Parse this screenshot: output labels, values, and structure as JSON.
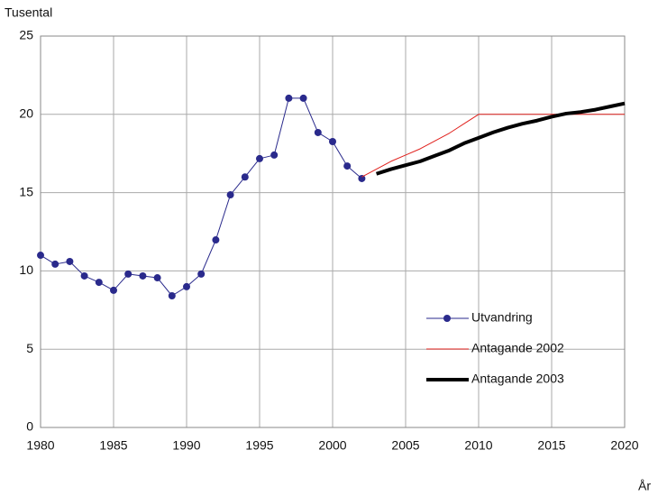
{
  "chart_data": {
    "type": "line",
    "y_label": "Tusental",
    "x_label": "År",
    "x": [
      1980,
      1981,
      1982,
      1983,
      1984,
      1985,
      1986,
      1987,
      1988,
      1989,
      1990,
      1991,
      1992,
      1993,
      1994,
      1995,
      1996,
      1997,
      1998,
      1999,
      2000,
      2001,
      2002,
      2003,
      2004,
      2005,
      2006,
      2007,
      2008,
      2009,
      2010,
      2011,
      2012,
      2013,
      2014,
      2015,
      2016,
      2017,
      2018,
      2019,
      2020
    ],
    "series": [
      {
        "name": "Utvandring",
        "color": "#2a2a8c",
        "markers": true,
        "width": 1,
        "values": [
          11.0,
          10.43,
          10.6,
          9.68,
          9.27,
          8.76,
          9.8,
          9.68,
          9.56,
          8.41,
          8.99,
          9.8,
          11.98,
          14.86,
          16.0,
          17.17,
          17.4,
          21.03,
          21.03,
          18.84,
          18.26,
          16.7,
          15.9,
          null,
          null,
          null,
          null,
          null,
          null,
          null,
          null,
          null,
          null,
          null,
          null,
          null,
          null,
          null,
          null,
          null,
          null
        ]
      },
      {
        "name": "Antagande 2002",
        "color": "#e0201c",
        "markers": false,
        "width": 1,
        "values": [
          null,
          null,
          null,
          null,
          null,
          null,
          null,
          null,
          null,
          null,
          null,
          null,
          null,
          null,
          null,
          null,
          null,
          null,
          null,
          null,
          null,
          null,
          16.0,
          16.5,
          17.0,
          17.4,
          17.8,
          18.3,
          18.8,
          19.4,
          20,
          20,
          20,
          20,
          20,
          20,
          20,
          20,
          20,
          20,
          20
        ]
      },
      {
        "name": "Antagande 2003",
        "color": "#000000",
        "markers": false,
        "width": 4,
        "values": [
          null,
          null,
          null,
          null,
          null,
          null,
          null,
          null,
          null,
          null,
          null,
          null,
          null,
          null,
          null,
          null,
          null,
          null,
          null,
          null,
          null,
          null,
          null,
          16.2,
          16.5,
          16.75,
          17.0,
          17.35,
          17.7,
          18.15,
          18.5,
          18.85,
          19.15,
          19.4,
          19.6,
          19.85,
          20.05,
          20.15,
          20.3,
          20.5,
          20.7
        ]
      }
    ],
    "xlim": [
      1980,
      2020
    ],
    "xticks": [
      1980,
      1985,
      1990,
      1995,
      2000,
      2005,
      2010,
      2015,
      2020
    ],
    "ylim": [
      0,
      25
    ],
    "yticks": [
      0,
      5,
      10,
      15,
      20,
      25
    ],
    "grid": true,
    "legend": "lower right"
  }
}
